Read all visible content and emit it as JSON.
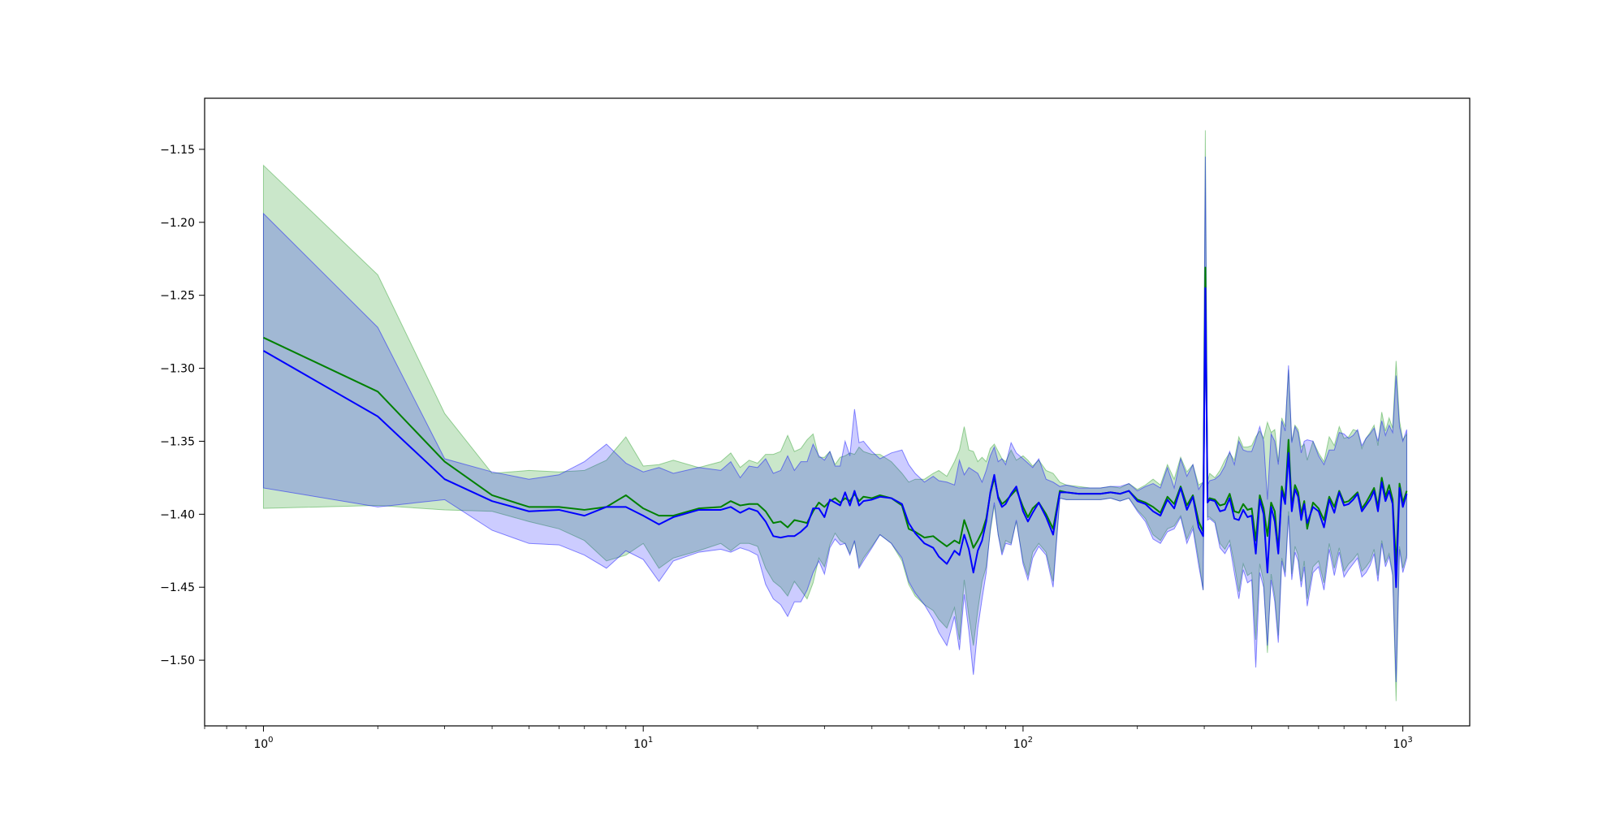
{
  "chart_data": {
    "type": "line",
    "title": "",
    "xlabel": "",
    "ylabel": "",
    "xscale": "log",
    "xlim": [
      0.7,
      1500
    ],
    "ylim": [
      -1.545,
      -1.115
    ],
    "grid": false,
    "x_ticks": [
      1,
      10,
      100,
      1000
    ],
    "x_tick_labels": [
      {
        "base": "10",
        "exp": "0"
      },
      {
        "base": "10",
        "exp": "1"
      },
      {
        "base": "10",
        "exp": "2"
      },
      {
        "base": "10",
        "exp": "3"
      }
    ],
    "y_ticks": [
      -1.15,
      -1.2,
      -1.25,
      -1.3,
      -1.35,
      -1.4,
      -1.45,
      -1.5
    ],
    "y_tick_labels": [
      "−1.15",
      "−1.20",
      "−1.25",
      "−1.30",
      "−1.35",
      "−1.40",
      "−1.45",
      "−1.50"
    ],
    "series": [
      {
        "color": "#008000",
        "band_color": "#2ca02c",
        "band_opacity": 0.25,
        "x": [
          1,
          2,
          3,
          4,
          5,
          6,
          7,
          8,
          9,
          10,
          11,
          12,
          14,
          16,
          17,
          18,
          19,
          20,
          21,
          22,
          23,
          24,
          25,
          26,
          27,
          28,
          29,
          30,
          31,
          32,
          33,
          34,
          35,
          36,
          37,
          38,
          40,
          42,
          45,
          48,
          50,
          52,
          55,
          58,
          60,
          63,
          66,
          68,
          70,
          72,
          74,
          76,
          78,
          80,
          82,
          84,
          86,
          88,
          90,
          93,
          96,
          100,
          103,
          106,
          110,
          115,
          120,
          125,
          130,
          140,
          150,
          160,
          170,
          180,
          190,
          200,
          210,
          220,
          230,
          240,
          250,
          260,
          270,
          280,
          290,
          298,
          302,
          306,
          310,
          320,
          330,
          340,
          350,
          360,
          370,
          380,
          390,
          400,
          410,
          420,
          430,
          440,
          450,
          460,
          470,
          480,
          490,
          500,
          510,
          520,
          530,
          540,
          550,
          560,
          580,
          600,
          620,
          640,
          660,
          680,
          700,
          720,
          740,
          760,
          780,
          800,
          820,
          840,
          860,
          880,
          900,
          920,
          940,
          960,
          980,
          1000,
          1024
        ],
        "y": [
          -1.279,
          -1.316,
          -1.364,
          -1.387,
          -1.395,
          -1.395,
          -1.397,
          -1.395,
          -1.387,
          -1.396,
          -1.401,
          -1.401,
          -1.396,
          -1.395,
          -1.391,
          -1.394,
          -1.393,
          -1.393,
          -1.398,
          -1.406,
          -1.405,
          -1.409,
          -1.404,
          -1.405,
          -1.406,
          -1.398,
          -1.392,
          -1.395,
          -1.391,
          -1.389,
          -1.392,
          -1.389,
          -1.391,
          -1.386,
          -1.391,
          -1.388,
          -1.389,
          -1.387,
          -1.389,
          -1.394,
          -1.41,
          -1.412,
          -1.416,
          -1.415,
          -1.418,
          -1.422,
          -1.418,
          -1.42,
          -1.404,
          -1.413,
          -1.423,
          -1.418,
          -1.412,
          -1.403,
          -1.386,
          -1.375,
          -1.388,
          -1.393,
          -1.391,
          -1.387,
          -1.383,
          -1.395,
          -1.402,
          -1.396,
          -1.392,
          -1.4,
          -1.41,
          -1.384,
          -1.385,
          -1.386,
          -1.386,
          -1.386,
          -1.385,
          -1.386,
          -1.384,
          -1.39,
          -1.392,
          -1.395,
          -1.399,
          -1.388,
          -1.393,
          -1.381,
          -1.394,
          -1.387,
          -1.405,
          -1.412,
          -1.231,
          -1.391,
          -1.389,
          -1.39,
          -1.394,
          -1.393,
          -1.386,
          -1.398,
          -1.399,
          -1.393,
          -1.397,
          -1.396,
          -1.418,
          -1.387,
          -1.396,
          -1.415,
          -1.392,
          -1.398,
          -1.425,
          -1.381,
          -1.39,
          -1.349,
          -1.395,
          -1.38,
          -1.385,
          -1.4,
          -1.391,
          -1.41,
          -1.392,
          -1.396,
          -1.404,
          -1.388,
          -1.395,
          -1.384,
          -1.392,
          -1.391,
          -1.388,
          -1.385,
          -1.396,
          -1.392,
          -1.387,
          -1.382,
          -1.395,
          -1.375,
          -1.388,
          -1.38,
          -1.39,
          -1.436,
          -1.379,
          -1.392,
          -1.384
        ],
        "lower": [
          -1.396,
          -1.394,
          -1.397,
          -1.398,
          -1.405,
          -1.41,
          -1.418,
          -1.432,
          -1.428,
          -1.42,
          -1.437,
          -1.43,
          -1.425,
          -1.42,
          -1.425,
          -1.42,
          -1.42,
          -1.422,
          -1.437,
          -1.446,
          -1.45,
          -1.456,
          -1.446,
          -1.452,
          -1.458,
          -1.447,
          -1.43,
          -1.436,
          -1.421,
          -1.413,
          -1.418,
          -1.42,
          -1.427,
          -1.419,
          -1.436,
          -1.43,
          -1.422,
          -1.414,
          -1.42,
          -1.432,
          -1.448,
          -1.456,
          -1.462,
          -1.466,
          -1.472,
          -1.478,
          -1.464,
          -1.486,
          -1.445,
          -1.47,
          -1.49,
          -1.466,
          -1.446,
          -1.436,
          -1.412,
          -1.394,
          -1.414,
          -1.426,
          -1.418,
          -1.42,
          -1.405,
          -1.432,
          -1.442,
          -1.426,
          -1.42,
          -1.426,
          -1.446,
          -1.389,
          -1.39,
          -1.39,
          -1.39,
          -1.39,
          -1.389,
          -1.391,
          -1.389,
          -1.397,
          -1.403,
          -1.414,
          -1.418,
          -1.41,
          -1.408,
          -1.401,
          -1.417,
          -1.408,
          -1.431,
          -1.452,
          -1.248,
          -1.402,
          -1.402,
          -1.405,
          -1.42,
          -1.424,
          -1.418,
          -1.434,
          -1.453,
          -1.434,
          -1.442,
          -1.44,
          -1.486,
          -1.434,
          -1.446,
          -1.495,
          -1.441,
          -1.456,
          -1.483,
          -1.43,
          -1.44,
          -1.398,
          -1.441,
          -1.422,
          -1.428,
          -1.446,
          -1.432,
          -1.458,
          -1.436,
          -1.432,
          -1.447,
          -1.42,
          -1.437,
          -1.423,
          -1.439,
          -1.434,
          -1.431,
          -1.427,
          -1.439,
          -1.436,
          -1.432,
          -1.424,
          -1.442,
          -1.418,
          -1.433,
          -1.427,
          -1.44,
          -1.528,
          -1.422,
          -1.437,
          -1.428
        ],
        "upper": [
          -1.161,
          -1.236,
          -1.331,
          -1.372,
          -1.37,
          -1.371,
          -1.37,
          -1.363,
          -1.347,
          -1.367,
          -1.366,
          -1.363,
          -1.368,
          -1.364,
          -1.358,
          -1.368,
          -1.363,
          -1.365,
          -1.359,
          -1.359,
          -1.357,
          -1.346,
          -1.357,
          -1.355,
          -1.349,
          -1.345,
          -1.361,
          -1.361,
          -1.357,
          -1.366,
          -1.361,
          -1.36,
          -1.358,
          -1.359,
          -1.354,
          -1.357,
          -1.359,
          -1.359,
          -1.364,
          -1.372,
          -1.378,
          -1.376,
          -1.376,
          -1.372,
          -1.37,
          -1.374,
          -1.364,
          -1.356,
          -1.34,
          -1.356,
          -1.357,
          -1.364,
          -1.361,
          -1.364,
          -1.355,
          -1.352,
          -1.357,
          -1.362,
          -1.364,
          -1.356,
          -1.363,
          -1.36,
          -1.363,
          -1.367,
          -1.363,
          -1.37,
          -1.372,
          -1.378,
          -1.38,
          -1.381,
          -1.382,
          -1.382,
          -1.381,
          -1.382,
          -1.379,
          -1.383,
          -1.38,
          -1.376,
          -1.38,
          -1.366,
          -1.376,
          -1.361,
          -1.371,
          -1.366,
          -1.38,
          -1.378,
          -1.137,
          -1.378,
          -1.372,
          -1.375,
          -1.37,
          -1.363,
          -1.358,
          -1.363,
          -1.347,
          -1.354,
          -1.354,
          -1.353,
          -1.347,
          -1.343,
          -1.348,
          -1.337,
          -1.344,
          -1.342,
          -1.364,
          -1.334,
          -1.34,
          -1.301,
          -1.35,
          -1.339,
          -1.342,
          -1.354,
          -1.352,
          -1.363,
          -1.35,
          -1.358,
          -1.364,
          -1.347,
          -1.353,
          -1.34,
          -1.348,
          -1.347,
          -1.342,
          -1.343,
          -1.355,
          -1.348,
          -1.344,
          -1.339,
          -1.353,
          -1.33,
          -1.343,
          -1.334,
          -1.341,
          -1.295,
          -1.336,
          -1.349,
          -1.345
        ]
      },
      {
        "color": "#0000ff",
        "band_color": "#0000ff",
        "band_opacity": 0.2,
        "x": [
          1,
          2,
          3,
          4,
          5,
          6,
          7,
          8,
          9,
          10,
          11,
          12,
          14,
          16,
          17,
          18,
          19,
          20,
          21,
          22,
          23,
          24,
          25,
          26,
          27,
          28,
          29,
          30,
          31,
          32,
          33,
          34,
          35,
          36,
          37,
          38,
          40,
          42,
          45,
          48,
          50,
          52,
          55,
          58,
          60,
          63,
          66,
          68,
          70,
          72,
          74,
          76,
          78,
          80,
          82,
          84,
          86,
          88,
          90,
          93,
          96,
          100,
          103,
          106,
          110,
          115,
          120,
          125,
          130,
          140,
          150,
          160,
          170,
          180,
          190,
          200,
          210,
          220,
          230,
          240,
          250,
          260,
          270,
          280,
          290,
          298,
          302,
          306,
          310,
          320,
          330,
          340,
          350,
          360,
          370,
          380,
          390,
          400,
          410,
          420,
          430,
          440,
          450,
          460,
          470,
          480,
          490,
          500,
          510,
          520,
          530,
          540,
          550,
          560,
          580,
          600,
          620,
          640,
          660,
          680,
          700,
          720,
          740,
          760,
          780,
          800,
          820,
          840,
          860,
          880,
          900,
          920,
          940,
          960,
          980,
          1000,
          1024
        ],
        "y": [
          -1.288,
          -1.333,
          -1.376,
          -1.391,
          -1.398,
          -1.397,
          -1.401,
          -1.395,
          -1.395,
          -1.401,
          -1.407,
          -1.402,
          -1.397,
          -1.397,
          -1.395,
          -1.399,
          -1.396,
          -1.398,
          -1.405,
          -1.415,
          -1.416,
          -1.415,
          -1.415,
          -1.412,
          -1.408,
          -1.396,
          -1.396,
          -1.402,
          -1.39,
          -1.392,
          -1.394,
          -1.385,
          -1.394,
          -1.384,
          -1.394,
          -1.391,
          -1.39,
          -1.388,
          -1.389,
          -1.393,
          -1.406,
          -1.413,
          -1.42,
          -1.423,
          -1.429,
          -1.434,
          -1.425,
          -1.428,
          -1.414,
          -1.424,
          -1.44,
          -1.425,
          -1.418,
          -1.405,
          -1.385,
          -1.373,
          -1.389,
          -1.395,
          -1.393,
          -1.386,
          -1.381,
          -1.398,
          -1.405,
          -1.399,
          -1.392,
          -1.402,
          -1.414,
          -1.385,
          -1.385,
          -1.386,
          -1.386,
          -1.386,
          -1.385,
          -1.386,
          -1.384,
          -1.391,
          -1.393,
          -1.398,
          -1.401,
          -1.39,
          -1.396,
          -1.382,
          -1.397,
          -1.388,
          -1.409,
          -1.415,
          -1.245,
          -1.392,
          -1.39,
          -1.391,
          -1.398,
          -1.397,
          -1.389,
          -1.403,
          -1.404,
          -1.397,
          -1.402,
          -1.401,
          -1.427,
          -1.39,
          -1.4,
          -1.44,
          -1.395,
          -1.405,
          -1.427,
          -1.384,
          -1.393,
          -1.358,
          -1.398,
          -1.383,
          -1.388,
          -1.404,
          -1.393,
          -1.406,
          -1.395,
          -1.398,
          -1.409,
          -1.39,
          -1.399,
          -1.385,
          -1.394,
          -1.393,
          -1.39,
          -1.386,
          -1.398,
          -1.394,
          -1.39,
          -1.384,
          -1.398,
          -1.378,
          -1.391,
          -1.384,
          -1.393,
          -1.45,
          -1.382,
          -1.395,
          -1.386
        ],
        "lower": [
          -1.382,
          -1.395,
          -1.39,
          -1.411,
          -1.42,
          -1.421,
          -1.428,
          -1.437,
          -1.425,
          -1.431,
          -1.446,
          -1.432,
          -1.426,
          -1.424,
          -1.426,
          -1.423,
          -1.425,
          -1.428,
          -1.448,
          -1.458,
          -1.462,
          -1.47,
          -1.46,
          -1.46,
          -1.452,
          -1.44,
          -1.432,
          -1.441,
          -1.423,
          -1.417,
          -1.421,
          -1.42,
          -1.428,
          -1.418,
          -1.437,
          -1.432,
          -1.423,
          -1.414,
          -1.42,
          -1.43,
          -1.446,
          -1.454,
          -1.462,
          -1.472,
          -1.481,
          -1.49,
          -1.47,
          -1.493,
          -1.455,
          -1.48,
          -1.51,
          -1.478,
          -1.458,
          -1.44,
          -1.41,
          -1.392,
          -1.414,
          -1.428,
          -1.42,
          -1.421,
          -1.404,
          -1.434,
          -1.445,
          -1.43,
          -1.422,
          -1.428,
          -1.45,
          -1.389,
          -1.39,
          -1.39,
          -1.39,
          -1.39,
          -1.389,
          -1.391,
          -1.389,
          -1.398,
          -1.405,
          -1.417,
          -1.42,
          -1.412,
          -1.41,
          -1.402,
          -1.42,
          -1.41,
          -1.435,
          -1.452,
          -1.262,
          -1.404,
          -1.403,
          -1.406,
          -1.423,
          -1.427,
          -1.421,
          -1.44,
          -1.458,
          -1.438,
          -1.447,
          -1.445,
          -1.505,
          -1.44,
          -1.45,
          -1.49,
          -1.445,
          -1.46,
          -1.488,
          -1.432,
          -1.443,
          -1.401,
          -1.445,
          -1.426,
          -1.432,
          -1.45,
          -1.436,
          -1.463,
          -1.44,
          -1.436,
          -1.452,
          -1.424,
          -1.442,
          -1.426,
          -1.443,
          -1.438,
          -1.434,
          -1.43,
          -1.443,
          -1.44,
          -1.435,
          -1.427,
          -1.446,
          -1.42,
          -1.436,
          -1.429,
          -1.442,
          -1.515,
          -1.424,
          -1.44,
          -1.43
        ],
        "upper": [
          -1.194,
          -1.272,
          -1.362,
          -1.371,
          -1.376,
          -1.373,
          -1.364,
          -1.352,
          -1.365,
          -1.371,
          -1.368,
          -1.372,
          -1.368,
          -1.37,
          -1.364,
          -1.375,
          -1.367,
          -1.368,
          -1.362,
          -1.372,
          -1.37,
          -1.36,
          -1.37,
          -1.364,
          -1.364,
          -1.352,
          -1.36,
          -1.363,
          -1.357,
          -1.367,
          -1.367,
          -1.35,
          -1.36,
          -1.328,
          -1.351,
          -1.35,
          -1.357,
          -1.362,
          -1.358,
          -1.356,
          -1.366,
          -1.372,
          -1.378,
          -1.374,
          -1.377,
          -1.378,
          -1.38,
          -1.363,
          -1.373,
          -1.368,
          -1.37,
          -1.372,
          -1.378,
          -1.37,
          -1.36,
          -1.354,
          -1.364,
          -1.362,
          -1.366,
          -1.351,
          -1.358,
          -1.362,
          -1.365,
          -1.368,
          -1.362,
          -1.376,
          -1.378,
          -1.381,
          -1.38,
          -1.382,
          -1.382,
          -1.382,
          -1.381,
          -1.381,
          -1.379,
          -1.384,
          -1.381,
          -1.379,
          -1.382,
          -1.368,
          -1.382,
          -1.362,
          -1.374,
          -1.366,
          -1.383,
          -1.378,
          -1.155,
          -1.38,
          -1.377,
          -1.376,
          -1.373,
          -1.367,
          -1.357,
          -1.366,
          -1.35,
          -1.356,
          -1.357,
          -1.357,
          -1.349,
          -1.34,
          -1.35,
          -1.39,
          -1.345,
          -1.35,
          -1.366,
          -1.336,
          -1.343,
          -1.298,
          -1.351,
          -1.34,
          -1.344,
          -1.358,
          -1.35,
          -1.349,
          -1.35,
          -1.36,
          -1.366,
          -1.356,
          -1.356,
          -1.344,
          -1.345,
          -1.348,
          -1.346,
          -1.342,
          -1.353,
          -1.348,
          -1.345,
          -1.341,
          -1.35,
          -1.336,
          -1.346,
          -1.339,
          -1.344,
          -1.305,
          -1.34,
          -1.35,
          -1.342
        ]
      }
    ]
  }
}
